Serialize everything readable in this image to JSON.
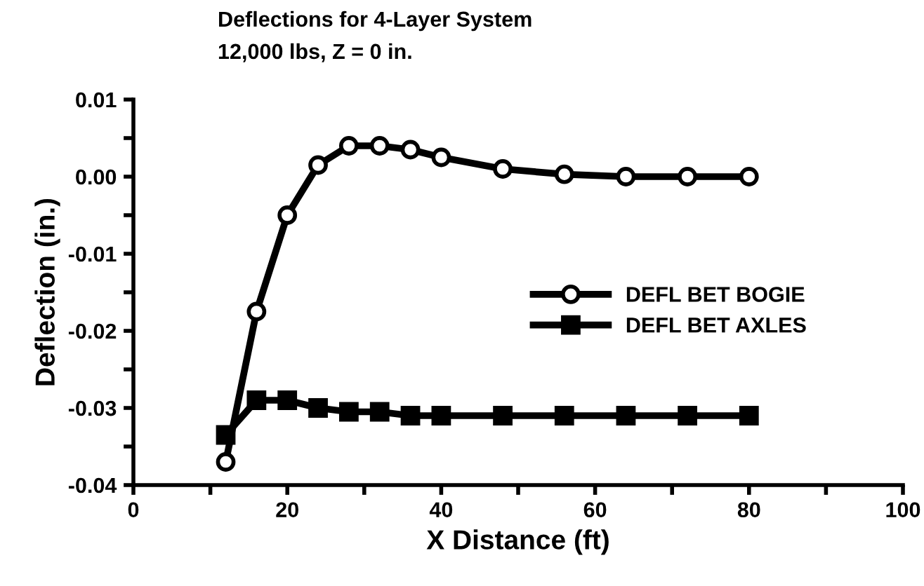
{
  "chart_data": {
    "type": "line",
    "title": "Deflections for 4-Layer System",
    "subtitle": "12,000 lbs, Z = 0 in.",
    "xlabel": "X Distance (ft)",
    "ylabel": "Deflection (in.)",
    "x": [
      12,
      16,
      20,
      24,
      28,
      32,
      36,
      40,
      48,
      56,
      64,
      72,
      80
    ],
    "series": [
      {
        "name": "DEFL BET BOGIE",
        "color": "#000000",
        "marker": "circle",
        "values": [
          -0.037,
          -0.0175,
          -0.005,
          0.0015,
          0.004,
          0.004,
          0.0035,
          0.0025,
          0.001,
          0.0003,
          0.0,
          0.0,
          0.0
        ]
      },
      {
        "name": "DEFL BET AXLES",
        "color": "#000000",
        "marker": "square",
        "values": [
          -0.0335,
          -0.029,
          -0.029,
          -0.03,
          -0.0305,
          -0.0305,
          -0.031,
          -0.031,
          -0.031,
          -0.031,
          -0.031,
          -0.031,
          -0.031
        ]
      }
    ],
    "xlim": [
      0,
      100
    ],
    "ylim": [
      -0.04,
      0.01
    ],
    "xticks": [
      0,
      {
        "value": 10,
        "label": null
      },
      20,
      {
        "value": 30,
        "label": null
      },
      40,
      {
        "value": 50,
        "label": null
      },
      60,
      {
        "value": 70,
        "label": null
      },
      80,
      {
        "value": 90,
        "label": null
      },
      100
    ],
    "yticks": [
      {
        "value": -0.04,
        "label": "-0.04"
      },
      {
        "value": -0.035,
        "label": null
      },
      {
        "value": -0.03,
        "label": "-0.03"
      },
      {
        "value": -0.025,
        "label": null
      },
      {
        "value": -0.02,
        "label": "-0.02"
      },
      {
        "value": -0.015,
        "label": null
      },
      {
        "value": -0.01,
        "label": "-0.01"
      },
      {
        "value": -0.005,
        "label": null
      },
      {
        "value": 0,
        "label": "0.00"
      },
      {
        "value": 0.005,
        "label": null
      },
      {
        "value": 0.01,
        "label": "0.01"
      }
    ],
    "grid": false,
    "legend": "right",
    "line_style": "solid"
  }
}
